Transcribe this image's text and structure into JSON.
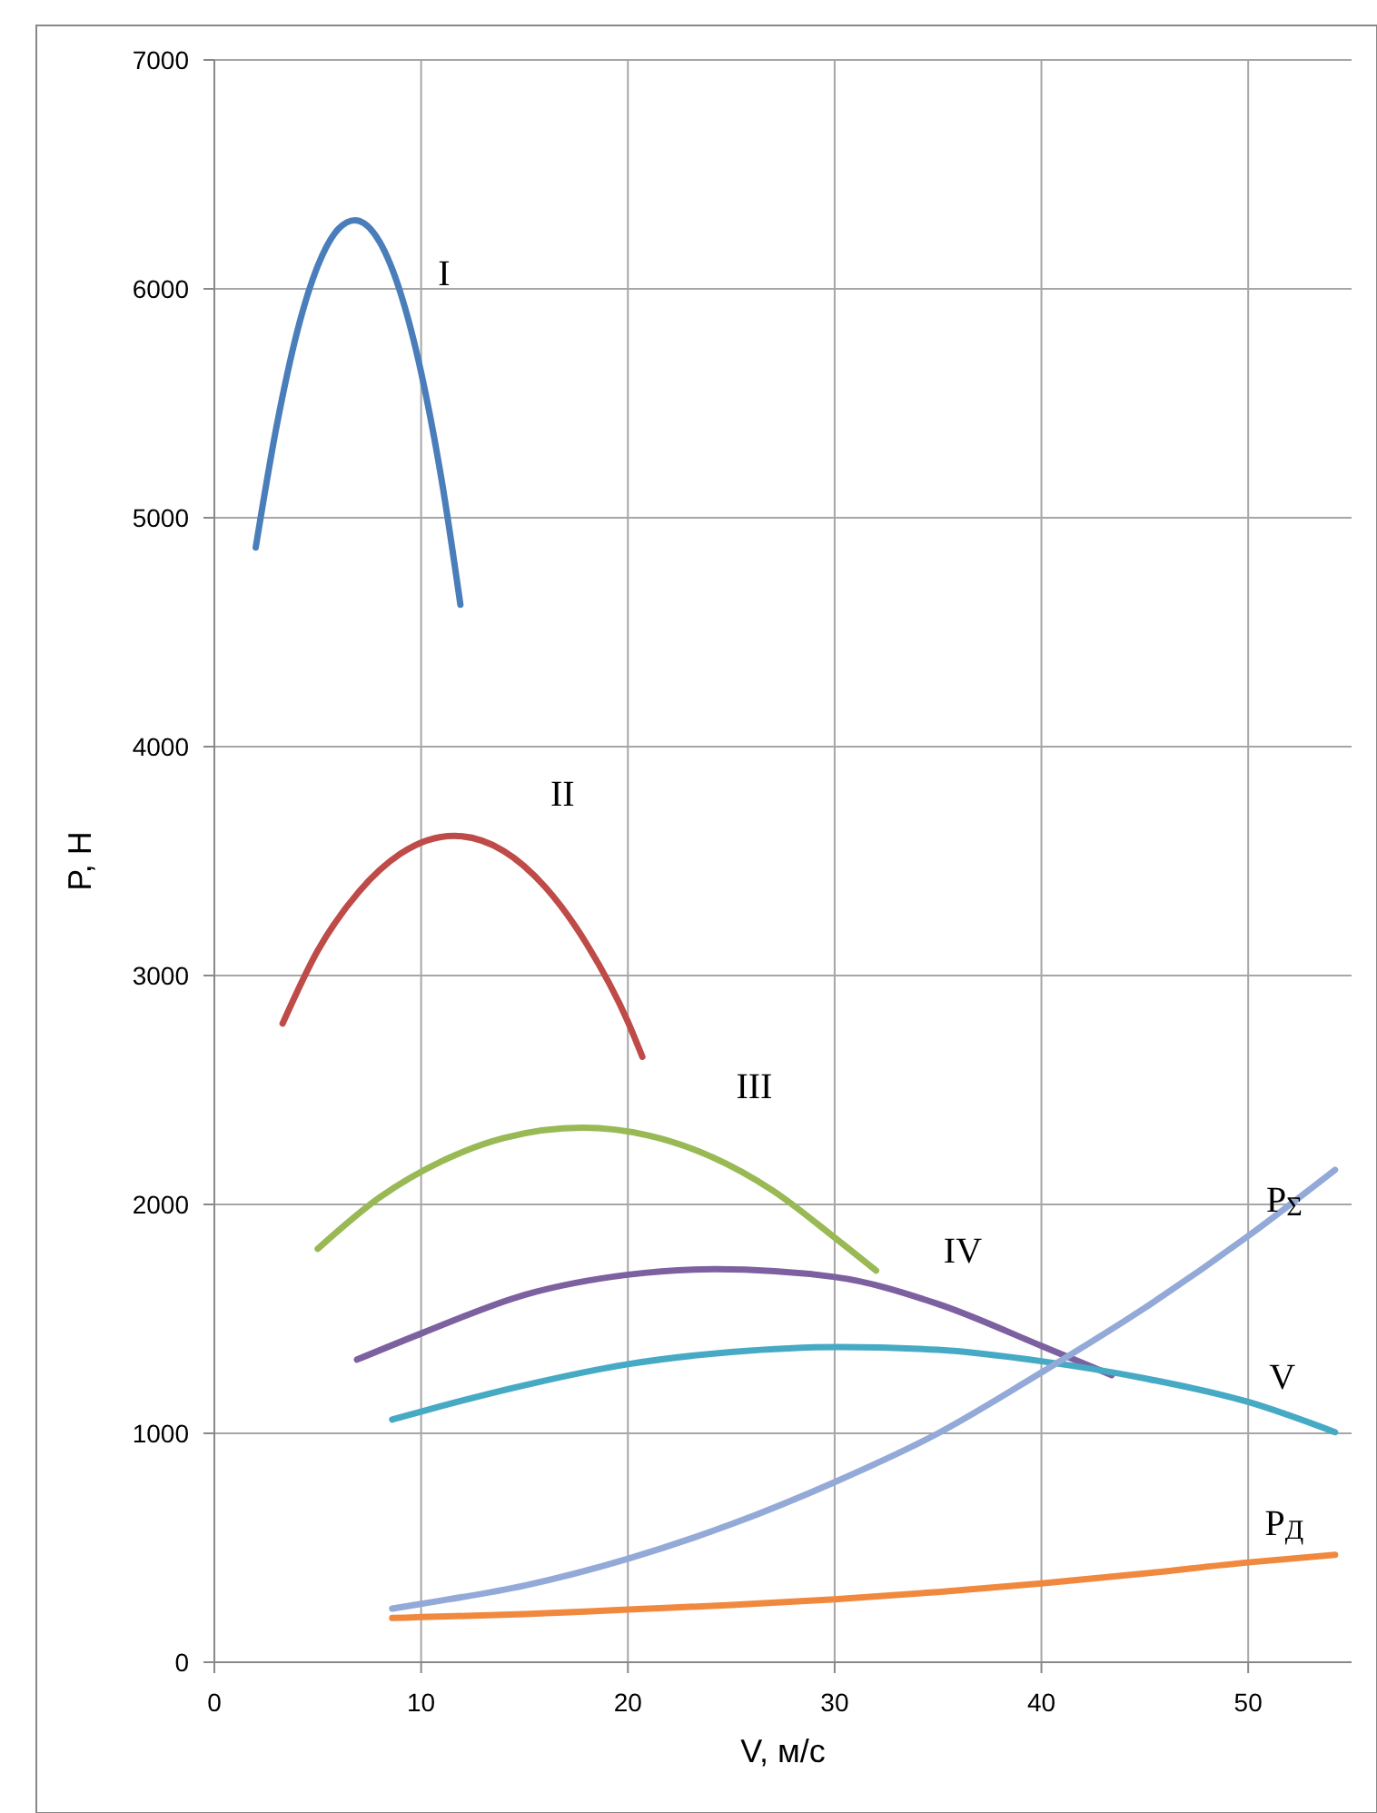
{
  "chart_data": {
    "type": "line",
    "xlabel": "V, м/с",
    "ylabel": "P, Н",
    "xlim": [
      0,
      55
    ],
    "ylim": [
      0,
      7000
    ],
    "xticks": [
      0,
      10,
      20,
      30,
      40,
      50
    ],
    "yticks": [
      0,
      1000,
      2000,
      3000,
      4000,
      5000,
      6000,
      7000
    ],
    "grid": true,
    "marker": "none",
    "line_style": "solid",
    "series": [
      {
        "name": "I",
        "color": "#4a7ebb",
        "x": [
          2,
          3,
          4,
          5,
          6,
          6.8,
          8,
          9,
          10,
          11,
          11.9
        ],
        "values": [
          4870,
          5395,
          5811,
          6100,
          6262,
          6300,
          6204,
          5983,
          5635,
          5160,
          4620
        ]
      },
      {
        "name": "II",
        "color": "#be4b48",
        "x": [
          3.3,
          5,
          7,
          9,
          11.6,
          14,
          16,
          18,
          20,
          20.7
        ],
        "values": [
          2790,
          3109,
          3367,
          3532,
          3610,
          3544,
          3387,
          3139,
          2798,
          2645
        ]
      },
      {
        "name": "III",
        "color": "#98b954",
        "x": [
          5,
          8,
          11,
          14,
          17.8,
          21,
          24,
          27,
          30,
          32
        ],
        "values": [
          1806,
          2031,
          2189,
          2290,
          2335,
          2301,
          2210,
          2061,
          1855,
          1711
        ]
      },
      {
        "name": "IV",
        "color": "#7d60a0",
        "x": [
          6.9,
          10,
          15,
          20,
          24.2,
          30,
          35,
          40,
          43.4
        ],
        "values": [
          1322,
          1436,
          1605,
          1693,
          1717,
          1683,
          1565,
          1382,
          1254
        ]
      },
      {
        "name": "V",
        "color": "#46aac5",
        "x": [
          8.6,
          10,
          15,
          20,
          25,
          30.2,
          35,
          40,
          45,
          50,
          54.2
        ],
        "values": [
          1060,
          1095,
          1210,
          1302,
          1355,
          1377,
          1365,
          1315,
          1240,
          1137,
          1005
        ]
      },
      {
        "name": "P$_{Σ}$",
        "color": "#93a9d7",
        "x": [
          8.6,
          10,
          15,
          20,
          25,
          30,
          35,
          40,
          45,
          50,
          54.2
        ],
        "values": [
          234,
          255,
          335,
          452,
          603,
          787,
          1000,
          1266,
          1548,
          1862,
          2151
        ]
      },
      {
        "name": "P$_{Д}$",
        "color": "#f0883e",
        "x": [
          8.6,
          10,
          15,
          20,
          25,
          30,
          35,
          40,
          45,
          50,
          54.2
        ],
        "values": [
          193,
          197,
          210,
          230,
          250,
          275,
          307,
          344,
          388,
          436,
          469
        ]
      }
    ]
  }
}
